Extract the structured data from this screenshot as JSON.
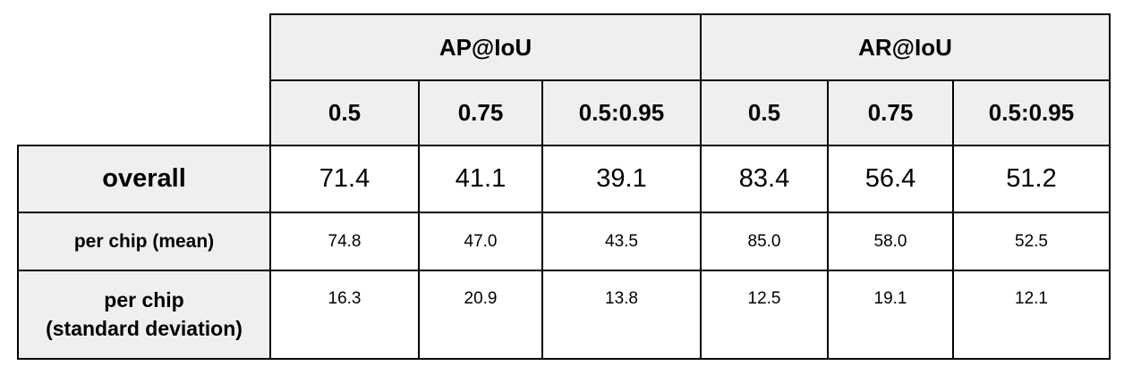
{
  "table": {
    "header": {
      "groups": [
        "AP@IoU",
        "AR@IoU"
      ],
      "thresholds": [
        "0.5",
        "0.75",
        "0.5:0.95",
        "0.5",
        "0.75",
        "0.5:0.95"
      ]
    },
    "rows": [
      {
        "label": "overall",
        "values": [
          "71.4",
          "41.1",
          "39.1",
          "83.4",
          "56.4",
          "51.2"
        ]
      },
      {
        "label": "per chip (mean)",
        "values": [
          "74.8",
          "47.0",
          "43.5",
          "85.0",
          "58.0",
          "52.5"
        ]
      },
      {
        "label": "per chip\n(standard deviation)",
        "values": [
          "16.3",
          "20.9",
          "13.8",
          "12.5",
          "19.1",
          "12.1"
        ]
      }
    ]
  }
}
